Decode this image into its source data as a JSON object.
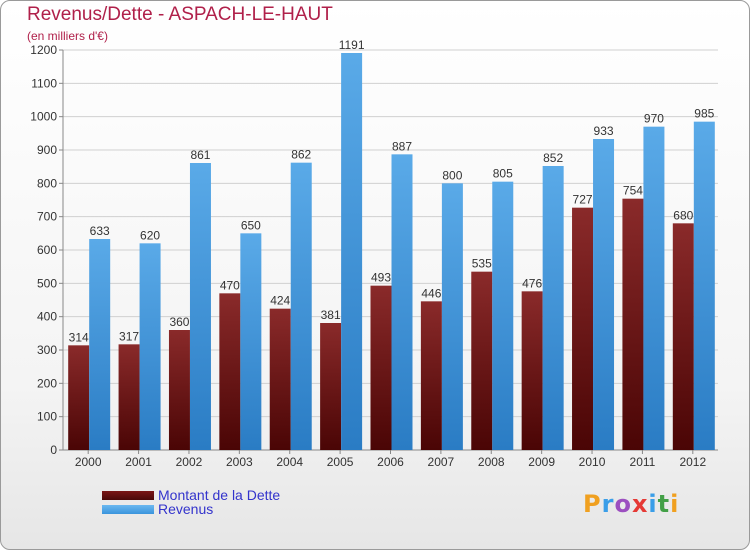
{
  "header": {
    "title": "Revenus/Dette - ASPACH-LE-HAUT",
    "subtitle": "(en milliers d'€)"
  },
  "brand": {
    "text": "Proxiti",
    "letter_colors": [
      "#f0a020",
      "#3a9ee8",
      "#9c4fc0",
      "#e53935",
      "#3a9ee8",
      "#43a047",
      "#f0a020"
    ]
  },
  "colors": {
    "dette": "#7a1515",
    "revenus": "#3a94dc",
    "label": "#333333",
    "grid": "#d0d0d0"
  },
  "chart_data": {
    "type": "bar",
    "title": "Revenus/Dette - ASPACH-LE-HAUT",
    "ylabel": "(en milliers d'€)",
    "categories": [
      "2000",
      "2001",
      "2002",
      "2003",
      "2004",
      "2005",
      "2006",
      "2007",
      "2008",
      "2009",
      "2010",
      "2011",
      "2012"
    ],
    "series": [
      {
        "name": "Montant de la Dette",
        "values": [
          314,
          317,
          360,
          470,
          424,
          381,
          493,
          446,
          535,
          476,
          727,
          754,
          680
        ]
      },
      {
        "name": "Revenus",
        "values": [
          633,
          620,
          861,
          650,
          862,
          1191,
          887,
          800,
          805,
          852,
          933,
          970,
          985
        ]
      }
    ],
    "ylim": [
      0,
      1200
    ],
    "yticks": [
      0,
      100,
      200,
      300,
      400,
      500,
      600,
      700,
      800,
      900,
      1000,
      1100,
      1200
    ],
    "grid": true,
    "legend_position": "bottom-left"
  }
}
